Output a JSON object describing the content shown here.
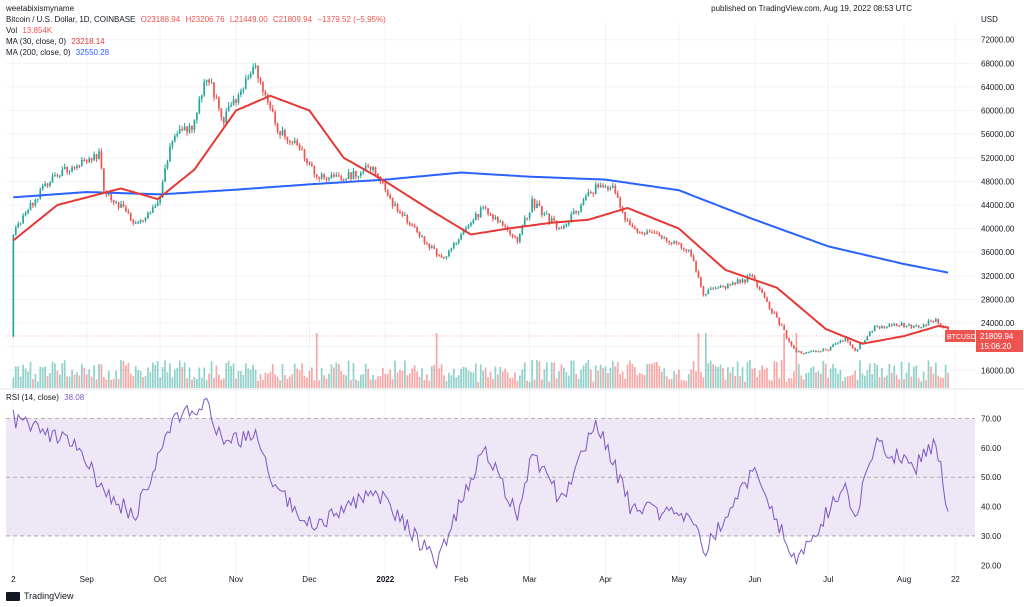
{
  "header": {
    "watermark": "weetabixismyname",
    "timestamp": "published on TradingView.com, Aug 19, 2022 08:53 UTC",
    "symbol": "Bitcoin / U.S. Dollar, 1D, COINBASE",
    "ohlc": {
      "o": "O23188.94",
      "h": "H23206.76",
      "l": "L21449.00",
      "c": "C21809.94",
      "chg": "−1379.52 (−5.95%)"
    },
    "vol_label": "Vol",
    "vol_value": "13.854K",
    "ma30_label": "MA (30, close, 0)",
    "ma30_value": "23218.14",
    "ma200_label": "MA (200, close, 0)",
    "ma200_value": "32550.28",
    "rsi_label": "RSI (14, close)",
    "rsi_value": "38.08",
    "currency": "USD",
    "price_tag": "BTCUSD",
    "price_tag_value": "21809.94",
    "countdown": "15:06:20",
    "footer": "TradingView"
  },
  "colors": {
    "up": "#26a69a",
    "down": "#ef5350",
    "ma30": "#e53935",
    "ma200": "#2962ff",
    "rsi": "#7e57c2",
    "rsi_band": "#ede7f6"
  },
  "chart_data": [
    {
      "type": "candlestick",
      "title": "Bitcoin / U.S. Dollar, 1D, COINBASE",
      "ylabel": "USD",
      "ylim": [
        13000,
        75000
      ],
      "y_ticks": [
        "72000.00",
        "68000.00",
        "64000.00",
        "60000.00",
        "56000.00",
        "52000.00",
        "48000.00",
        "44000.00",
        "40000.00",
        "36000.00",
        "32000.00",
        "28000.00",
        "24000.00",
        "20000.00",
        "16000.00"
      ],
      "x_ticks": [
        "2",
        "Sep",
        "Oct",
        "Nov",
        "Dec",
        "2022",
        "Feb",
        "Mar",
        "Apr",
        "May",
        "Jun",
        "Jul",
        "Aug",
        "22"
      ],
      "close_path": [
        [
          "2021-08-02",
          39300
        ],
        [
          "2021-08-14",
          47000
        ],
        [
          "2021-08-22",
          49500
        ],
        [
          "2021-09-06",
          52600
        ],
        [
          "2021-09-08",
          46800
        ],
        [
          "2021-09-21",
          40700
        ],
        [
          "2021-09-30",
          43800
        ],
        [
          "2021-10-06",
          55300
        ],
        [
          "2021-10-14",
          57400
        ],
        [
          "2021-10-20",
          66000
        ],
        [
          "2021-10-27",
          58500
        ],
        [
          "2021-11-09",
          67500
        ],
        [
          "2021-11-18",
          56900
        ],
        [
          "2021-11-26",
          54000
        ],
        [
          "2021-12-04",
          49200
        ],
        [
          "2021-12-14",
          48300
        ],
        [
          "2021-12-27",
          50700
        ],
        [
          "2022-01-05",
          43500
        ],
        [
          "2022-01-21",
          36300
        ],
        [
          "2022-01-24",
          34800
        ],
        [
          "2022-02-10",
          43600
        ],
        [
          "2022-02-24",
          38300
        ],
        [
          "2022-03-02",
          44400
        ],
        [
          "2022-03-14",
          39700
        ],
        [
          "2022-03-28",
          47100
        ],
        [
          "2022-04-04",
          46600
        ],
        [
          "2022-04-11",
          40000
        ],
        [
          "2022-04-30",
          37700
        ],
        [
          "2022-05-05",
          36500
        ],
        [
          "2022-05-11",
          29000
        ],
        [
          "2022-05-31",
          31800
        ],
        [
          "2022-06-13",
          22500
        ],
        [
          "2022-06-18",
          19000
        ],
        [
          "2022-06-30",
          19300
        ],
        [
          "2022-07-08",
          21600
        ],
        [
          "2022-07-12",
          19300
        ],
        [
          "2022-07-20",
          23200
        ],
        [
          "2022-07-30",
          23800
        ],
        [
          "2022-08-05",
          23300
        ],
        [
          "2022-08-14",
          24400
        ],
        [
          "2022-08-18",
          23200
        ],
        [
          "2022-08-19",
          21810
        ]
      ],
      "ma30_path": [
        [
          "2021-08-02",
          38000
        ],
        [
          "2021-08-20",
          44000
        ],
        [
          "2021-09-15",
          46800
        ],
        [
          "2021-09-30",
          45000
        ],
        [
          "2021-10-15",
          50000
        ],
        [
          "2021-11-01",
          60000
        ],
        [
          "2021-11-15",
          62500
        ],
        [
          "2021-12-01",
          60000
        ],
        [
          "2021-12-15",
          52000
        ],
        [
          "2022-01-01",
          48000
        ],
        [
          "2022-01-20",
          43000
        ],
        [
          "2022-02-05",
          39000
        ],
        [
          "2022-02-20",
          40000
        ],
        [
          "2022-03-10",
          41000
        ],
        [
          "2022-03-25",
          41500
        ],
        [
          "2022-04-10",
          43500
        ],
        [
          "2022-05-01",
          40000
        ],
        [
          "2022-05-20",
          33000
        ],
        [
          "2022-06-10",
          30000
        ],
        [
          "2022-06-30",
          23000
        ],
        [
          "2022-07-15",
          20500
        ],
        [
          "2022-08-01",
          21800
        ],
        [
          "2022-08-15",
          23500
        ],
        [
          "2022-08-19",
          23218
        ]
      ],
      "ma200_path": [
        [
          "2021-08-02",
          45300
        ],
        [
          "2021-09-01",
          46200
        ],
        [
          "2021-10-01",
          45800
        ],
        [
          "2021-11-01",
          46600
        ],
        [
          "2021-12-01",
          47500
        ],
        [
          "2022-01-01",
          48300
        ],
        [
          "2022-02-01",
          49500
        ],
        [
          "2022-03-01",
          48800
        ],
        [
          "2022-04-01",
          48300
        ],
        [
          "2022-05-01",
          46500
        ],
        [
          "2022-06-01",
          41500
        ],
        [
          "2022-07-01",
          37000
        ],
        [
          "2022-08-01",
          34000
        ],
        [
          "2022-08-19",
          32550
        ]
      ],
      "volume_spikes": [
        "2021-12-04",
        "2022-01-22",
        "2022-05-09",
        "2022-05-12",
        "2022-06-13",
        "2022-06-18"
      ]
    },
    {
      "type": "line",
      "title": "RSI (14, close)",
      "ylim": [
        15,
        78
      ],
      "bands": [
        30,
        70
      ],
      "y_ticks": [
        "70.00",
        "60.00",
        "50.00",
        "40.00",
        "30.00",
        "20.00"
      ],
      "series": [
        {
          "name": "RSI (14, close)",
          "values_path": [
            [
              "2021-08-02",
              70
            ],
            [
              "2021-08-14",
              66
            ],
            [
              "2021-08-30",
              60
            ],
            [
              "2021-09-07",
              45
            ],
            [
              "2021-09-21",
              37
            ],
            [
              "2021-10-06",
              70
            ],
            [
              "2021-10-20",
              75
            ],
            [
              "2021-10-27",
              60
            ],
            [
              "2021-11-09",
              66
            ],
            [
              "2021-11-18",
              45
            ],
            [
              "2021-12-04",
              33
            ],
            [
              "2021-12-27",
              46
            ],
            [
              "2022-01-05",
              38
            ],
            [
              "2022-01-22",
              21
            ],
            [
              "2022-02-10",
              60
            ],
            [
              "2022-02-24",
              38
            ],
            [
              "2022-03-02",
              58
            ],
            [
              "2022-03-14",
              42
            ],
            [
              "2022-03-28",
              70
            ],
            [
              "2022-04-11",
              40
            ],
            [
              "2022-05-05",
              37
            ],
            [
              "2022-05-12",
              25
            ],
            [
              "2022-05-31",
              52
            ],
            [
              "2022-06-18",
              21
            ],
            [
              "2022-07-08",
              48
            ],
            [
              "2022-07-12",
              35
            ],
            [
              "2022-07-20",
              62
            ],
            [
              "2022-08-05",
              53
            ],
            [
              "2022-08-14",
              62
            ],
            [
              "2022-08-19",
              38
            ]
          ]
        }
      ]
    }
  ]
}
